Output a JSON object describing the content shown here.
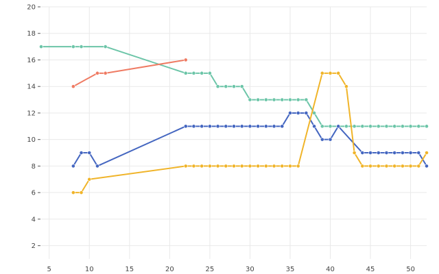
{
  "chart_data": {
    "type": "line",
    "title": "",
    "xlabel": "",
    "ylabel": "",
    "xlim": [
      4,
      52
    ],
    "ylim": [
      1,
      20
    ],
    "x_ticks": [
      "5",
      "10",
      "15",
      "20",
      "25",
      "30",
      "35",
      "40",
      "45",
      "50"
    ],
    "y_ticks": [
      "2",
      "4",
      "6",
      "8",
      "10",
      "12",
      "14",
      "16",
      "18",
      "20"
    ],
    "grid": true,
    "legend": "none",
    "series": [
      {
        "color": "#6cc5a8",
        "x": [
          4,
          8,
          9,
          12,
          22,
          23,
          24,
          25,
          26,
          27,
          28,
          29,
          30,
          31,
          32,
          33,
          34,
          35,
          36,
          37,
          38,
          39,
          40,
          41,
          42,
          43,
          44,
          45,
          46,
          47,
          48,
          49,
          50,
          51,
          52
        ],
        "y": [
          17,
          17,
          17,
          17,
          15,
          15,
          15,
          15,
          14,
          14,
          14,
          14,
          13,
          13,
          13,
          13,
          13,
          13,
          13,
          13,
          12,
          11,
          11,
          11,
          11,
          11,
          11,
          11,
          11,
          11,
          11,
          11,
          11,
          11,
          11
        ]
      },
      {
        "color": "#ef7b63",
        "x": [
          8,
          11,
          12,
          22
        ],
        "y": [
          14,
          15,
          15,
          16
        ]
      },
      {
        "color": "#4466c0",
        "x": [
          8,
          9,
          10,
          11,
          22,
          23,
          24,
          25,
          26,
          27,
          28,
          29,
          30,
          31,
          32,
          33,
          34,
          35,
          36,
          37,
          38,
          39,
          40,
          41,
          44,
          45,
          46,
          47,
          48,
          49,
          50,
          51,
          52
        ],
        "y": [
          8,
          9,
          9,
          8,
          11,
          11,
          11,
          11,
          11,
          11,
          11,
          11,
          11,
          11,
          11,
          11,
          11,
          12,
          12,
          12,
          11,
          10,
          10,
          11,
          9,
          9,
          9,
          9,
          9,
          9,
          9,
          9,
          8
        ]
      },
      {
        "color": "#f0b429",
        "x": [
          8,
          9,
          10,
          22,
          23,
          24,
          25,
          26,
          27,
          28,
          29,
          30,
          31,
          32,
          33,
          34,
          35,
          36,
          39,
          40,
          41,
          42,
          43,
          44,
          45,
          46,
          47,
          48,
          49,
          50,
          51,
          52
        ],
        "y": [
          6,
          6,
          7,
          8,
          8,
          8,
          8,
          8,
          8,
          8,
          8,
          8,
          8,
          8,
          8,
          8,
          8,
          8,
          15,
          15,
          15,
          14,
          9,
          8,
          8,
          8,
          8,
          8,
          8,
          8,
          8,
          9
        ]
      }
    ]
  }
}
